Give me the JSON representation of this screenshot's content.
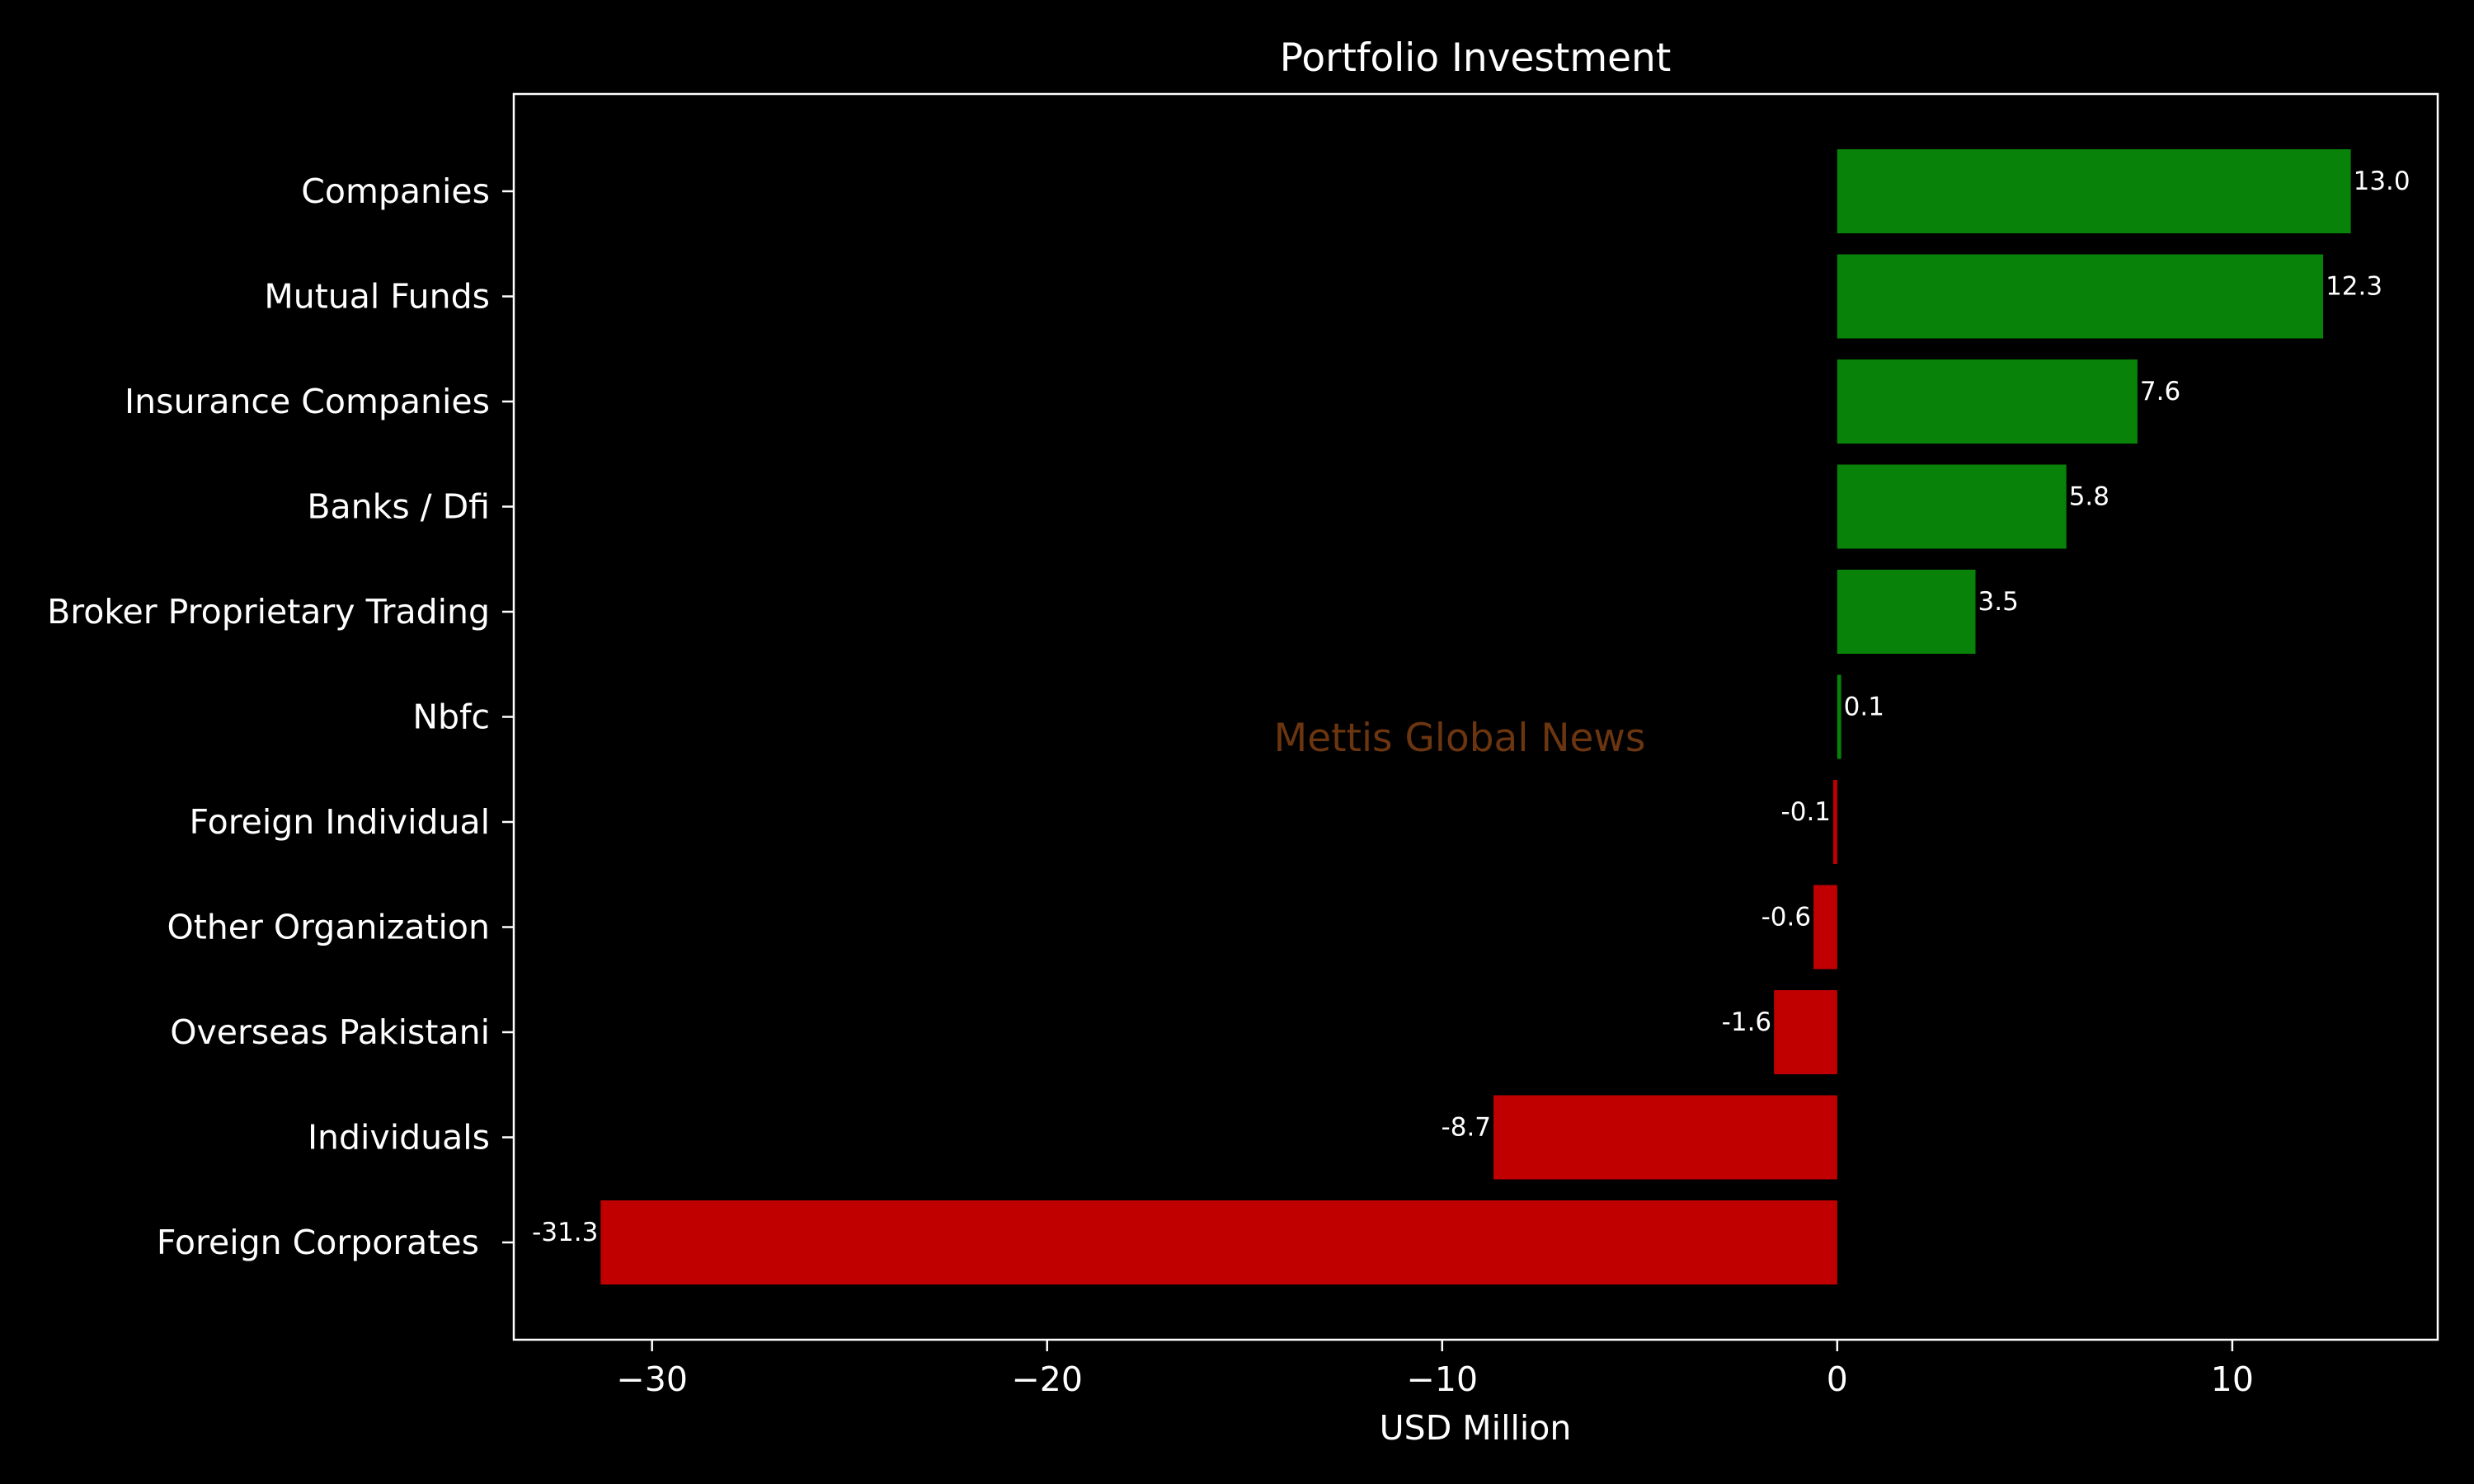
{
  "chart_data": {
    "type": "bar",
    "orientation": "horizontal",
    "title": "Portfolio Investment",
    "xlabel": "USD Million",
    "ylabel": "",
    "xlim": [
      -33.5,
      15.2
    ],
    "xticks": [
      -30,
      -20,
      -10,
      0,
      10
    ],
    "xtick_labels": [
      "−30",
      "−20",
      "−10",
      "0",
      "10"
    ],
    "categories": [
      "Companies",
      "Mutual Funds",
      "Insurance Companies",
      "Banks / Dfi",
      "Broker Proprietary Trading",
      "Nbfc",
      "Foreign Individual",
      "Other Organization",
      "Overseas Pakistani",
      "Individuals",
      "Foreign Corporates "
    ],
    "values": [
      13.0,
      12.3,
      7.6,
      5.8,
      3.5,
      0.1,
      -0.1,
      -0.6,
      -1.6,
      -8.7,
      -31.3
    ],
    "value_labels": [
      "13.0",
      "12.3",
      "7.6",
      "5.8",
      "3.5",
      "0.1",
      "-0.1",
      "-0.6",
      "-1.6",
      "-8.7",
      "-31.3"
    ],
    "positive_color": "#088208",
    "negative_color": "#c00000",
    "grid": false,
    "legend": "none"
  },
  "watermark": {
    "text": "Mettis Global News",
    "color": "#6b3510"
  }
}
